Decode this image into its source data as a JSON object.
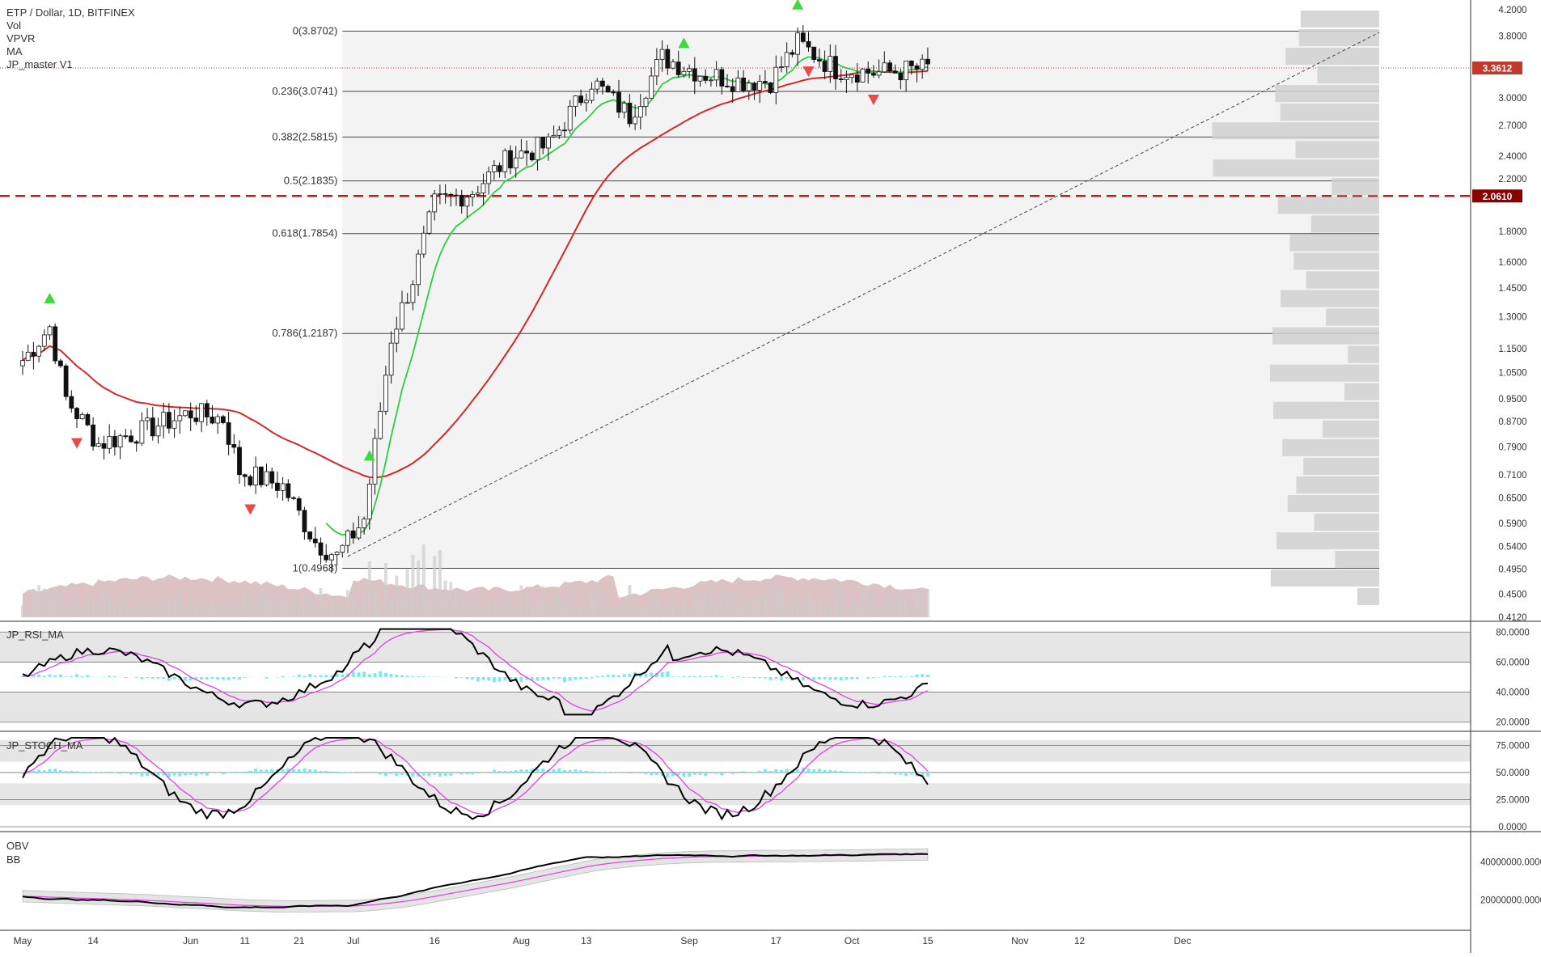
{
  "header": {
    "title": "ETP / Dollar, 1D, BITFINEX",
    "indicators": [
      "Vol",
      "VPVR",
      "MA",
      "JP_master V1"
    ]
  },
  "panes": {
    "rsi": {
      "label": "JP_RSI_MA",
      "ticks": [
        "80.0000",
        "60.0000",
        "40.0000",
        "20.0000"
      ],
      "tick_values": [
        80,
        60,
        40,
        20
      ]
    },
    "stoch": {
      "label": "JP_STOCH_MA",
      "ticks": [
        "75.0000",
        "50.0000",
        "25.0000",
        "0.0000"
      ],
      "tick_values": [
        75,
        50,
        25,
        0
      ]
    },
    "obv": {
      "labels": [
        "OBV",
        "BB"
      ],
      "ticks": [
        "40000000.0000",
        "20000000.0000"
      ],
      "tick_values": [
        40000000,
        20000000
      ]
    }
  },
  "badges": {
    "last_price": "3.3612",
    "support_price": "2.0610"
  },
  "colors": {
    "up": "#2a9d2a",
    "down": "#c0392b",
    "ma": "#d62728",
    "ema": "#2ecc40",
    "current_line": "#c0392b",
    "support": "#b22222",
    "vol_area": "#c9a2a2",
    "rsi_line": "#000000",
    "rsi_ma": "#e040e0",
    "hist": "#7fe7f0",
    "obv_bb": "#bbbbbb"
  },
  "chart_data": {
    "type": "candlestick",
    "title": "ETP / Dollar, 1D, BITFINEX",
    "y_scale": "log",
    "ylim": [
      0.412,
      4.2
    ],
    "y_ticks": [
      "4.2000",
      "3.8000",
      "3.3612",
      "3.0000",
      "2.7000",
      "2.4000",
      "2.2000",
      "2.0610",
      "1.8000",
      "1.6000",
      "1.4500",
      "1.3000",
      "1.1500",
      "1.0500",
      "0.9500",
      "0.8700",
      "0.7900",
      "0.7100",
      "0.6500",
      "0.5900",
      "0.5400",
      "0.4950",
      "0.4500",
      "0.4120"
    ],
    "y_tick_values": [
      4.2,
      3.8,
      3.3612,
      3.0,
      2.7,
      2.4,
      2.2,
      2.061,
      1.8,
      1.6,
      1.45,
      1.3,
      1.15,
      1.05,
      0.95,
      0.87,
      0.79,
      0.71,
      0.65,
      0.59,
      0.54,
      0.495,
      0.45,
      0.412
    ],
    "x_ticks": [
      "May",
      "14",
      "Jun",
      "11",
      "21",
      "Jul",
      "16",
      "Aug",
      "13",
      "Sep",
      "17",
      "Oct",
      "15",
      "Nov",
      "12",
      "Dec"
    ],
    "x_tick_days": [
      0,
      13,
      31,
      41,
      51,
      61,
      76,
      92,
      104,
      123,
      139,
      153,
      167,
      184,
      195,
      214
    ],
    "fib_levels": [
      {
        "label": "0(3.8702)",
        "value": 3.8702
      },
      {
        "label": "0.236(3.0741)",
        "value": 3.0741
      },
      {
        "label": "0.382(2.5815)",
        "value": 2.5815
      },
      {
        "label": "0.5(2.1835)",
        "value": 2.1835
      },
      {
        "label": "0.618(1.7854)",
        "value": 1.7854
      },
      {
        "label": "0.786(1.2187)",
        "value": 1.2187
      },
      {
        "label": "1(0.4968)",
        "value": 0.4968
      }
    ],
    "last_price": 3.3612,
    "support_level": 2.061,
    "key_closes": [
      {
        "day": 0,
        "close": 1.1
      },
      {
        "day": 5,
        "close": 1.25
      },
      {
        "day": 8,
        "close": 0.95
      },
      {
        "day": 14,
        "close": 0.8
      },
      {
        "day": 22,
        "close": 0.84
      },
      {
        "day": 31,
        "close": 0.9
      },
      {
        "day": 37,
        "close": 0.88
      },
      {
        "day": 40,
        "close": 0.72
      },
      {
        "day": 48,
        "close": 0.68
      },
      {
        "day": 54,
        "close": 0.55
      },
      {
        "day": 58,
        "close": 0.52
      },
      {
        "day": 63,
        "close": 0.6
      },
      {
        "day": 68,
        "close": 1.2
      },
      {
        "day": 72,
        "close": 1.5
      },
      {
        "day": 76,
        "close": 2.0
      },
      {
        "day": 83,
        "close": 2.1
      },
      {
        "day": 90,
        "close": 2.4
      },
      {
        "day": 97,
        "close": 2.5
      },
      {
        "day": 105,
        "close": 3.2
      },
      {
        "day": 112,
        "close": 2.8
      },
      {
        "day": 118,
        "close": 3.5
      },
      {
        "day": 125,
        "close": 3.3
      },
      {
        "day": 132,
        "close": 3.2
      },
      {
        "day": 138,
        "close": 3.2
      },
      {
        "day": 143,
        "close": 3.7
      },
      {
        "day": 150,
        "close": 3.35
      },
      {
        "day": 158,
        "close": 3.3
      },
      {
        "day": 167,
        "close": 3.36
      }
    ]
  }
}
